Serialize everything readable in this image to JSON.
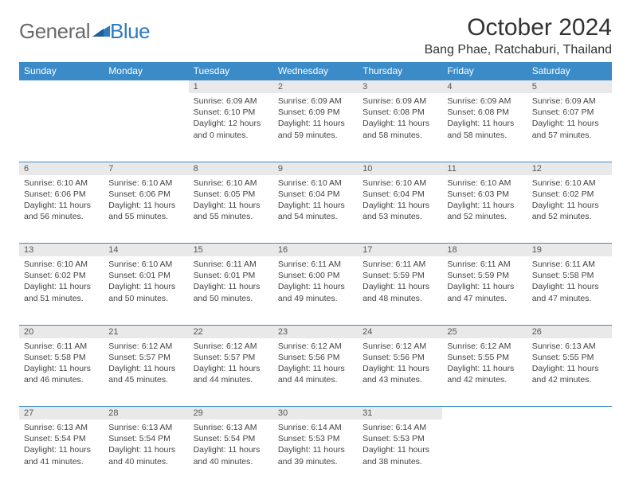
{
  "brand": {
    "general": "General",
    "blue": "Blue"
  },
  "title": "October 2024",
  "location": "Bang Phae, Ratchaburi, Thailand",
  "colors": {
    "header_bg": "#3b8bc8",
    "header_text": "#ffffff",
    "daynum_bg": "#e9e9e9",
    "border": "#3b8bc8",
    "logo_gray": "#6a6a6a",
    "logo_blue": "#2f7bbf"
  },
  "day_headers": [
    "Sunday",
    "Monday",
    "Tuesday",
    "Wednesday",
    "Thursday",
    "Friday",
    "Saturday"
  ],
  "weeks": [
    [
      null,
      null,
      {
        "n": "1",
        "sunrise": "Sunrise: 6:09 AM",
        "sunset": "Sunset: 6:10 PM",
        "daylight": "Daylight: 12 hours and 0 minutes."
      },
      {
        "n": "2",
        "sunrise": "Sunrise: 6:09 AM",
        "sunset": "Sunset: 6:09 PM",
        "daylight": "Daylight: 11 hours and 59 minutes."
      },
      {
        "n": "3",
        "sunrise": "Sunrise: 6:09 AM",
        "sunset": "Sunset: 6:08 PM",
        "daylight": "Daylight: 11 hours and 58 minutes."
      },
      {
        "n": "4",
        "sunrise": "Sunrise: 6:09 AM",
        "sunset": "Sunset: 6:08 PM",
        "daylight": "Daylight: 11 hours and 58 minutes."
      },
      {
        "n": "5",
        "sunrise": "Sunrise: 6:09 AM",
        "sunset": "Sunset: 6:07 PM",
        "daylight": "Daylight: 11 hours and 57 minutes."
      }
    ],
    [
      {
        "n": "6",
        "sunrise": "Sunrise: 6:10 AM",
        "sunset": "Sunset: 6:06 PM",
        "daylight": "Daylight: 11 hours and 56 minutes."
      },
      {
        "n": "7",
        "sunrise": "Sunrise: 6:10 AM",
        "sunset": "Sunset: 6:06 PM",
        "daylight": "Daylight: 11 hours and 55 minutes."
      },
      {
        "n": "8",
        "sunrise": "Sunrise: 6:10 AM",
        "sunset": "Sunset: 6:05 PM",
        "daylight": "Daylight: 11 hours and 55 minutes."
      },
      {
        "n": "9",
        "sunrise": "Sunrise: 6:10 AM",
        "sunset": "Sunset: 6:04 PM",
        "daylight": "Daylight: 11 hours and 54 minutes."
      },
      {
        "n": "10",
        "sunrise": "Sunrise: 6:10 AM",
        "sunset": "Sunset: 6:04 PM",
        "daylight": "Daylight: 11 hours and 53 minutes."
      },
      {
        "n": "11",
        "sunrise": "Sunrise: 6:10 AM",
        "sunset": "Sunset: 6:03 PM",
        "daylight": "Daylight: 11 hours and 52 minutes."
      },
      {
        "n": "12",
        "sunrise": "Sunrise: 6:10 AM",
        "sunset": "Sunset: 6:02 PM",
        "daylight": "Daylight: 11 hours and 52 minutes."
      }
    ],
    [
      {
        "n": "13",
        "sunrise": "Sunrise: 6:10 AM",
        "sunset": "Sunset: 6:02 PM",
        "daylight": "Daylight: 11 hours and 51 minutes."
      },
      {
        "n": "14",
        "sunrise": "Sunrise: 6:10 AM",
        "sunset": "Sunset: 6:01 PM",
        "daylight": "Daylight: 11 hours and 50 minutes."
      },
      {
        "n": "15",
        "sunrise": "Sunrise: 6:11 AM",
        "sunset": "Sunset: 6:01 PM",
        "daylight": "Daylight: 11 hours and 50 minutes."
      },
      {
        "n": "16",
        "sunrise": "Sunrise: 6:11 AM",
        "sunset": "Sunset: 6:00 PM",
        "daylight": "Daylight: 11 hours and 49 minutes."
      },
      {
        "n": "17",
        "sunrise": "Sunrise: 6:11 AM",
        "sunset": "Sunset: 5:59 PM",
        "daylight": "Daylight: 11 hours and 48 minutes."
      },
      {
        "n": "18",
        "sunrise": "Sunrise: 6:11 AM",
        "sunset": "Sunset: 5:59 PM",
        "daylight": "Daylight: 11 hours and 47 minutes."
      },
      {
        "n": "19",
        "sunrise": "Sunrise: 6:11 AM",
        "sunset": "Sunset: 5:58 PM",
        "daylight": "Daylight: 11 hours and 47 minutes."
      }
    ],
    [
      {
        "n": "20",
        "sunrise": "Sunrise: 6:11 AM",
        "sunset": "Sunset: 5:58 PM",
        "daylight": "Daylight: 11 hours and 46 minutes."
      },
      {
        "n": "21",
        "sunrise": "Sunrise: 6:12 AM",
        "sunset": "Sunset: 5:57 PM",
        "daylight": "Daylight: 11 hours and 45 minutes."
      },
      {
        "n": "22",
        "sunrise": "Sunrise: 6:12 AM",
        "sunset": "Sunset: 5:57 PM",
        "daylight": "Daylight: 11 hours and 44 minutes."
      },
      {
        "n": "23",
        "sunrise": "Sunrise: 6:12 AM",
        "sunset": "Sunset: 5:56 PM",
        "daylight": "Daylight: 11 hours and 44 minutes."
      },
      {
        "n": "24",
        "sunrise": "Sunrise: 6:12 AM",
        "sunset": "Sunset: 5:56 PM",
        "daylight": "Daylight: 11 hours and 43 minutes."
      },
      {
        "n": "25",
        "sunrise": "Sunrise: 6:12 AM",
        "sunset": "Sunset: 5:55 PM",
        "daylight": "Daylight: 11 hours and 42 minutes."
      },
      {
        "n": "26",
        "sunrise": "Sunrise: 6:13 AM",
        "sunset": "Sunset: 5:55 PM",
        "daylight": "Daylight: 11 hours and 42 minutes."
      }
    ],
    [
      {
        "n": "27",
        "sunrise": "Sunrise: 6:13 AM",
        "sunset": "Sunset: 5:54 PM",
        "daylight": "Daylight: 11 hours and 41 minutes."
      },
      {
        "n": "28",
        "sunrise": "Sunrise: 6:13 AM",
        "sunset": "Sunset: 5:54 PM",
        "daylight": "Daylight: 11 hours and 40 minutes."
      },
      {
        "n": "29",
        "sunrise": "Sunrise: 6:13 AM",
        "sunset": "Sunset: 5:54 PM",
        "daylight": "Daylight: 11 hours and 40 minutes."
      },
      {
        "n": "30",
        "sunrise": "Sunrise: 6:14 AM",
        "sunset": "Sunset: 5:53 PM",
        "daylight": "Daylight: 11 hours and 39 minutes."
      },
      {
        "n": "31",
        "sunrise": "Sunrise: 6:14 AM",
        "sunset": "Sunset: 5:53 PM",
        "daylight": "Daylight: 11 hours and 38 minutes."
      },
      null,
      null
    ]
  ]
}
